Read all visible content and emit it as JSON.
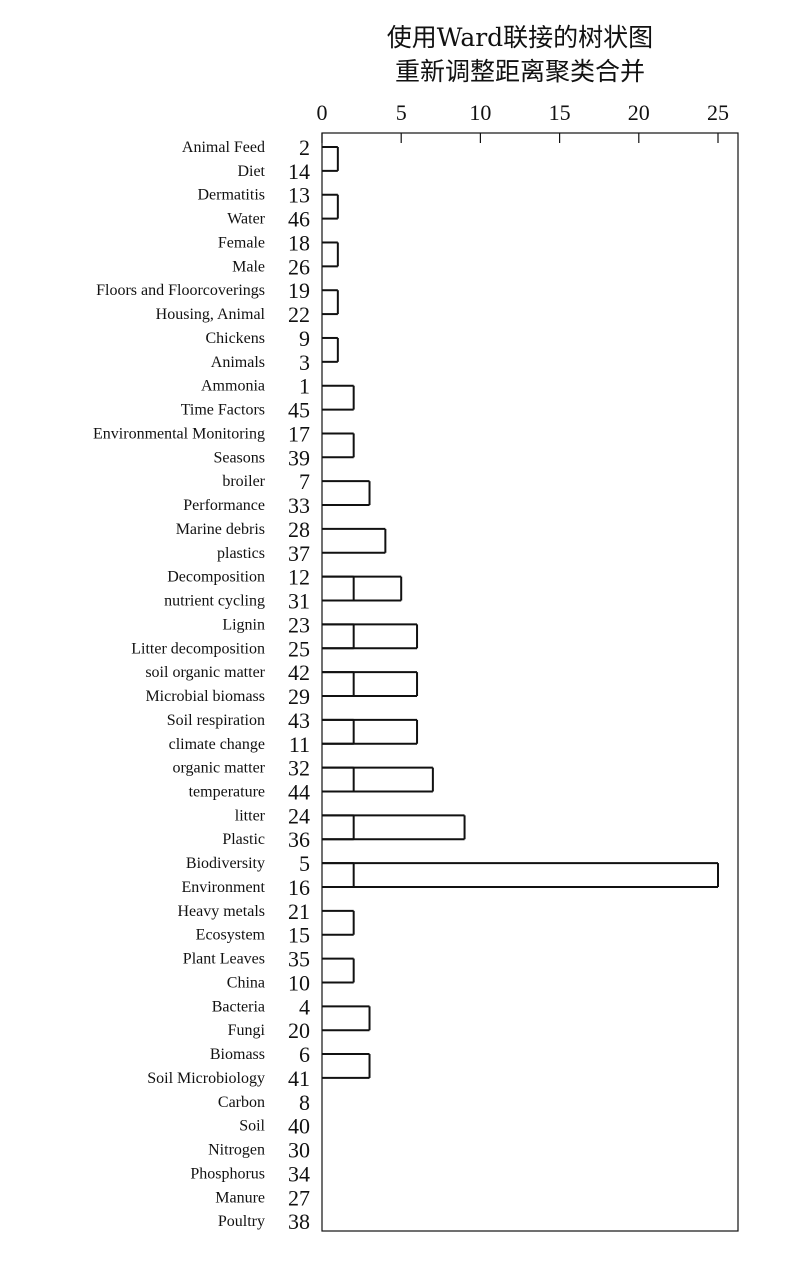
{
  "title_line1": "使用Ward联接的树状图",
  "title_line2": "重新调整距离聚类合并",
  "axis": {
    "ticks": [
      0,
      5,
      10,
      15,
      20,
      25
    ],
    "min": 0,
    "max": 25
  },
  "leaves": [
    {
      "label": "Animal Feed",
      "num": "2"
    },
    {
      "label": "Diet",
      "num": "14"
    },
    {
      "label": "Dermatitis",
      "num": "13"
    },
    {
      "label": "Water",
      "num": "46"
    },
    {
      "label": "Female",
      "num": "18"
    },
    {
      "label": "Male",
      "num": "26"
    },
    {
      "label": "Floors and Floorcoverings",
      "num": "19"
    },
    {
      "label": "Housing, Animal",
      "num": "22"
    },
    {
      "label": "Chickens",
      "num": "9"
    },
    {
      "label": "Animals",
      "num": "3"
    },
    {
      "label": "Ammonia",
      "num": "1"
    },
    {
      "label": "Time Factors",
      "num": "45"
    },
    {
      "label": "Environmental Monitoring",
      "num": "17"
    },
    {
      "label": "Seasons",
      "num": "39"
    },
    {
      "label": "broiler",
      "num": "7"
    },
    {
      "label": "Performance",
      "num": "33"
    },
    {
      "label": "Marine debris",
      "num": "28"
    },
    {
      "label": "plastics",
      "num": "37"
    },
    {
      "label": "Decomposition",
      "num": "12"
    },
    {
      "label": "nutrient cycling",
      "num": "31"
    },
    {
      "label": "Lignin",
      "num": "23"
    },
    {
      "label": "Litter decomposition",
      "num": "25"
    },
    {
      "label": "soil organic matter",
      "num": "42"
    },
    {
      "label": "Microbial biomass",
      "num": "29"
    },
    {
      "label": "Soil respiration",
      "num": "43"
    },
    {
      "label": "climate change",
      "num": "11"
    },
    {
      "label": "organic matter",
      "num": "32"
    },
    {
      "label": "temperature",
      "num": "44"
    },
    {
      "label": "litter",
      "num": "24"
    },
    {
      "label": "Plastic",
      "num": "36"
    },
    {
      "label": "Biodiversity",
      "num": "5"
    },
    {
      "label": "Environment",
      "num": "16"
    },
    {
      "label": "Heavy metals",
      "num": "21"
    },
    {
      "label": "Ecosystem",
      "num": "15"
    },
    {
      "label": "Plant Leaves",
      "num": "35"
    },
    {
      "label": "China",
      "num": "10"
    },
    {
      "label": "Bacteria",
      "num": "4"
    },
    {
      "label": "Fungi",
      "num": "20"
    },
    {
      "label": "Biomass",
      "num": "6"
    },
    {
      "label": "Soil Microbiology",
      "num": "41"
    },
    {
      "label": "Carbon",
      "num": "8"
    },
    {
      "label": "Soil",
      "num": "40"
    },
    {
      "label": "Nitrogen",
      "num": "30"
    },
    {
      "label": "Phosphorus",
      "num": "34"
    },
    {
      "label": "Manure",
      "num": "27"
    },
    {
      "label": "Poultry",
      "num": "38"
    }
  ],
  "merges": [
    {
      "a": 0,
      "b": 1,
      "h": 1.0
    },
    {
      "a": 2,
      "b": 3,
      "h": 1.0
    },
    {
      "a": 4,
      "b": 5,
      "h": 1.0
    },
    {
      "a": 6,
      "b": 7,
      "h": 1.0
    },
    {
      "a": 8,
      "b": 9,
      "h": 1.0
    },
    {
      "a": 18,
      "b": 19,
      "h": 2.0
    },
    {
      "a": 20,
      "b": 21,
      "h": 2.0
    },
    {
      "a": 22,
      "b": 23,
      "h": 2.0
    },
    {
      "a": 24,
      "b": 25,
      "h": 2.0
    },
    {
      "a": 26,
      "b": 27,
      "h": 2.0
    },
    {
      "a": 28,
      "b": 29,
      "h": 2.0
    },
    {
      "a": 30,
      "b": 31,
      "h": 2.0
    },
    {
      "a": 32,
      "b": 33,
      "h": 2.0
    },
    {
      "a": 34,
      "b": 35,
      "h": 2.0
    },
    {
      "a": 36,
      "b": 37,
      "h": 3.0
    },
    {
      "a": 38,
      "b": 39,
      "h": 3.0
    },
    {
      "a": 10,
      "b": 11,
      "h": 2.0
    },
    {
      "a": 12,
      "b": 13,
      "h": 2.0
    },
    {
      "a": 14,
      "b": 15,
      "h": 3.0
    },
    {
      "a": 16,
      "b": 17,
      "h": 4.0
    },
    {
      "a": 18,
      "b": 19,
      "h": 5.0
    },
    {
      "a": 20,
      "b": 21,
      "h": 6.0
    },
    {
      "a": 22,
      "b": 23,
      "h": 6.0
    },
    {
      "a": 24,
      "b": 25,
      "h": 6.0
    },
    {
      "a": 26,
      "b": 27,
      "h": 7.0
    },
    {
      "a": 28,
      "b": 29,
      "h": 9.0
    },
    {
      "a": 30,
      "b": 31,
      "h": 25.0
    }
  ]
}
